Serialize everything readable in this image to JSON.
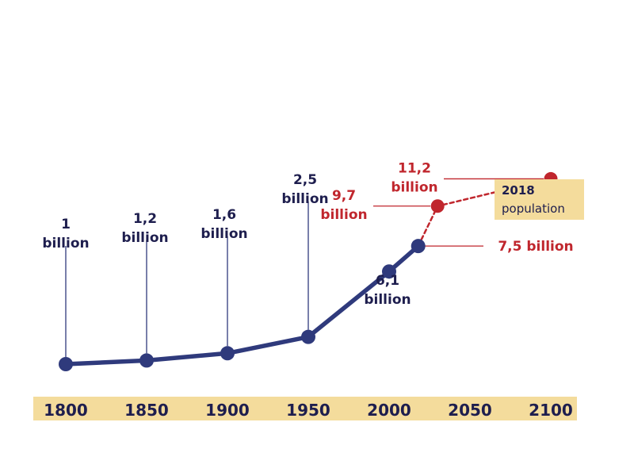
{
  "chart_data": {
    "type": "line",
    "x_ticks": [
      "1800",
      "1850",
      "1900",
      "1950",
      "2000",
      "2050",
      "2100"
    ],
    "x_range": [
      1800,
      2100
    ],
    "y_range": [
      0,
      12
    ],
    "grid": false,
    "series": [
      {
        "style": "solid",
        "color": "#2f3a7c",
        "points": [
          {
            "x": 1800,
            "y": 1.0,
            "label": [
              "1",
              "billion"
            ]
          },
          {
            "x": 1850,
            "y": 1.2,
            "label": [
              "1,2",
              "billion"
            ]
          },
          {
            "x": 1900,
            "y": 1.6,
            "label": [
              "1,6",
              "billion"
            ]
          },
          {
            "x": 1950,
            "y": 2.5,
            "label": [
              "2,5",
              "billion"
            ]
          },
          {
            "x": 2000,
            "y": 6.1,
            "label": [
              "6,1",
              "billion"
            ]
          },
          {
            "x": 2018,
            "y": 7.5,
            "label": [
              "7,5 billion"
            ]
          }
        ]
      },
      {
        "style": "dashed",
        "color": "#c0262d",
        "points": [
          {
            "x": 2018,
            "y": 7.5
          },
          {
            "x": 2030,
            "y": 9.7,
            "label": [
              "9,7",
              "billion"
            ]
          },
          {
            "x": 2100,
            "y": 11.2,
            "label": [
              "11,2",
              "billion"
            ]
          }
        ]
      }
    ],
    "annotation": {
      "line1": "2018",
      "line2": "population"
    }
  }
}
